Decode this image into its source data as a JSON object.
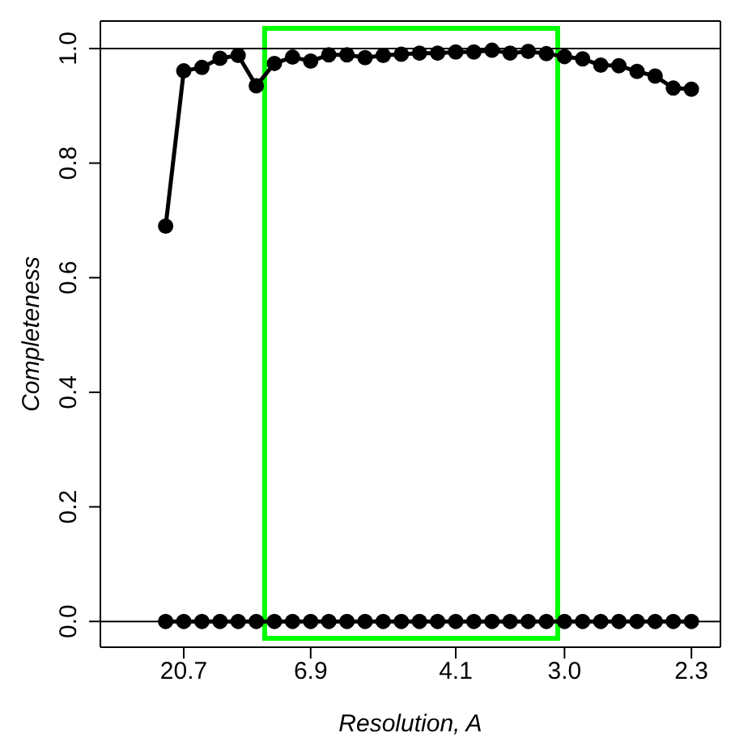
{
  "chart_data": {
    "type": "line",
    "xlabel": "Resolution, A",
    "ylabel": "Completeness",
    "categories": [
      null,
      "20.7",
      null,
      null,
      null,
      null,
      null,
      null,
      "6.9",
      null,
      null,
      null,
      null,
      null,
      null,
      null,
      "4.1",
      null,
      null,
      null,
      null,
      null,
      "3.0",
      null,
      null,
      null,
      null,
      null,
      null,
      "2.3"
    ],
    "series": [
      {
        "color": "#000000",
        "values": [
          0.69,
          0.961,
          0.967,
          0.983,
          0.988,
          0.935,
          0.974,
          0.985,
          0.978,
          0.989,
          0.989,
          0.984,
          0.988,
          0.99,
          0.992,
          0.992,
          0.994,
          0.994,
          0.997,
          0.992,
          0.995,
          0.991,
          0.986,
          0.982,
          0.971,
          0.97,
          0.96,
          0.952,
          0.931,
          0.929
        ]
      },
      {
        "color": "#000000",
        "values": [
          0,
          0,
          0,
          0,
          0,
          0,
          0,
          0,
          0,
          0,
          0,
          0,
          0,
          0,
          0,
          0,
          0,
          0,
          0,
          0,
          0,
          0,
          0,
          0,
          0,
          0,
          0,
          0,
          0,
          0
        ]
      }
    ],
    "ylim": [
      -0.045,
      1.048
    ],
    "yticks": [
      {
        "value": 0,
        "label": "0.0"
      },
      {
        "value": 0.2,
        "label": "0.2"
      },
      {
        "value": 0.4,
        "label": "0.4"
      },
      {
        "value": 0.6,
        "label": "0.6"
      },
      {
        "value": 0.8,
        "label": "0.8"
      },
      {
        "value": 1,
        "label": "1.0"
      }
    ],
    "ref_lines": [
      {
        "axis": "y",
        "value": 0,
        "color": "#000000"
      },
      {
        "axis": "y",
        "value": 1,
        "color": "#000000"
      }
    ],
    "marker": "circle",
    "line_style": "solid",
    "grid": false,
    "legend": false
  }
}
